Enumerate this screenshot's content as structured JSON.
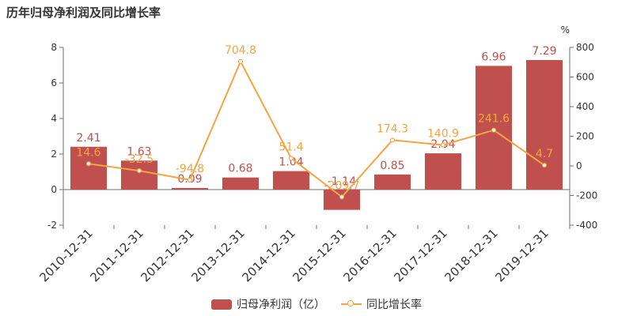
{
  "title": "历年归母净利润及同比增长率",
  "chart_data": {
    "type": "bar",
    "categories": [
      "2010-12-31",
      "2011-12-31",
      "2012-12-31",
      "2013-12-31",
      "2014-12-31",
      "2015-12-31",
      "2016-12-31",
      "2017-12-31",
      "2018-12-31",
      "2019-12-31"
    ],
    "series": [
      {
        "name": "归母净利润（亿）",
        "type": "bar",
        "axis": "left",
        "color": "#c0504d",
        "values": [
          2.41,
          1.63,
          0.09,
          0.68,
          1.04,
          -1.14,
          0.85,
          2.04,
          6.96,
          7.29
        ],
        "labels": [
          "2.41",
          "1.63",
          "0.09",
          "0.68",
          "1.04",
          "-1.14",
          "0.85",
          "2.04",
          "6.96",
          "7.29"
        ]
      },
      {
        "name": "同比增长率",
        "type": "line",
        "axis": "right",
        "color": "#f4a443",
        "values": [
          14.6,
          -32.5,
          -94.8,
          704.8,
          51.4,
          -209.7,
          174.3,
          140.9,
          241.6,
          4.7
        ],
        "labels": [
          "14.6",
          "-32.5",
          "-94.8",
          "704.8",
          "51.4",
          "-209.7",
          "174.3",
          "140.9",
          "241.6",
          "4.7"
        ]
      }
    ],
    "yaxis_left": {
      "min": -2,
      "max": 8,
      "ticks": [
        "-2",
        "0",
        "2",
        "4",
        "6",
        "8"
      ]
    },
    "yaxis_right": {
      "unit": "%",
      "min": -400,
      "max": 800,
      "ticks": [
        "-400",
        "-200",
        "0",
        "200",
        "400",
        "600",
        "800"
      ]
    },
    "grid": false,
    "legend": "bottom-center"
  }
}
